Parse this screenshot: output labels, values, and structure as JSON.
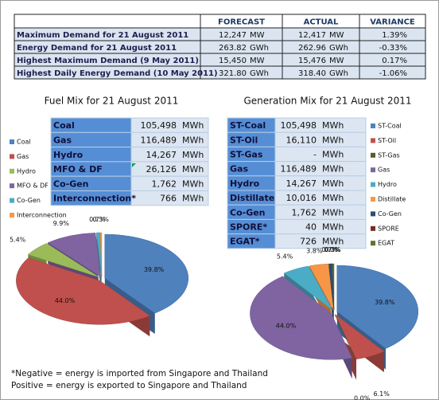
{
  "summary_table": {
    "headers": [
      "FORECAST",
      "ACTUAL",
      "VARIANCE"
    ],
    "rows": [
      {
        "label": "Maximum Demand for 21 August 2011",
        "forecast": "12,247",
        "forecast_unit": "MW",
        "actual": "12,417",
        "actual_unit": "MW",
        "variance": "1.39%"
      },
      {
        "label": "Energy Demand for 21 August 2011",
        "forecast": "263.82",
        "forecast_unit": "GWh",
        "actual": "262.96",
        "actual_unit": "GWh",
        "variance": "-0.33%"
      },
      {
        "label": "Highest Maximum Demand (9 May 2011)",
        "forecast": "15,450",
        "forecast_unit": "MW",
        "actual": "15,476",
        "actual_unit": "MW",
        "variance": "0.17%"
      },
      {
        "label": "Highest Daily Energy Demand (10 May 2011)",
        "forecast": "321.80",
        "forecast_unit": "GWh",
        "actual": "318.40",
        "actual_unit": "GWh",
        "variance": "-1.06%"
      }
    ]
  },
  "chart_data": [
    {
      "type": "pie",
      "title": "Fuel Mix for 21 August 2011",
      "legend": "left",
      "categories": [
        "Coal",
        "Gas",
        "Hydro",
        "MFO & DF",
        "Co-Gen",
        "Interconnection"
      ],
      "values": [
        39.8,
        44.0,
        5.4,
        9.9,
        0.7,
        0.3
      ],
      "value_labels": [
        "39.8%",
        "44.0%",
        "5.4%",
        "9.9%",
        "0.7%",
        "0.3%"
      ],
      "colors": [
        "#4f81bd",
        "#c0504d",
        "#9bbb59",
        "#8064a2",
        "#4bacc6",
        "#f79646"
      ]
    },
    {
      "type": "pie",
      "title": "Generation Mix for 21 August 2011",
      "legend": "right",
      "categories": [
        "ST-Coal",
        "ST-Oil",
        "ST-Gas",
        "Gas",
        "Hydro",
        "Distillate",
        "Co-Gen",
        "SPORE",
        "EGAT"
      ],
      "values": [
        39.8,
        6.1,
        0.0,
        44.0,
        5.4,
        3.8,
        0.7,
        0.0,
        0.3
      ],
      "value_labels": [
        "39.8%",
        "6.1%",
        "0.0%",
        "44.0%",
        "5.4%",
        "3.8%",
        "0.7%",
        "0.0%",
        "0.3%"
      ],
      "colors": [
        "#4f81bd",
        "#c0504d",
        "#4f6228",
        "#8064a2",
        "#4bacc6",
        "#f79646",
        "#2c4d75",
        "#772c2a",
        "#5f7530"
      ]
    }
  ],
  "fuel_table": {
    "rows": [
      [
        "Coal",
        "105,498",
        "MWh"
      ],
      [
        "Gas",
        "116,489",
        "MWh"
      ],
      [
        "Hydro",
        "14,267",
        "MWh"
      ],
      [
        "MFO & DF",
        "26,126",
        "MWh"
      ],
      [
        "Co-Gen",
        "1,762",
        "MWh"
      ],
      [
        "Interconnection*",
        "766",
        "MWh"
      ]
    ]
  },
  "generation_table": {
    "rows": [
      [
        "ST-Coal",
        "105,498",
        "MWh"
      ],
      [
        "ST-Oil",
        "16,110",
        "MWh"
      ],
      [
        "ST-Gas",
        "-",
        "MWh"
      ],
      [
        "Gas",
        "116,489",
        "MWh"
      ],
      [
        "Hydro",
        "14,267",
        "MWh"
      ],
      [
        "Distillate",
        "10,016",
        "MWh"
      ],
      [
        "Co-Gen",
        "1,762",
        "MWh"
      ],
      [
        "SPORE*",
        "40",
        "MWh"
      ],
      [
        "EGAT*",
        "726",
        "MWh"
      ]
    ]
  },
  "footnote": [
    "*Negative = energy is imported from Singapore and Thailand",
    "Positive = energy is exported to Singapore and Thailand"
  ]
}
